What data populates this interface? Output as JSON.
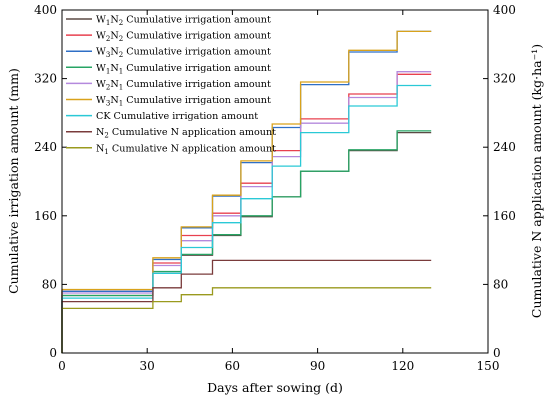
{
  "chart_data": {
    "type": "line",
    "step": true,
    "xlabel": "Days after sowing (d)",
    "ylabel": "Cumulative irrigation amount (mm)",
    "y2label": "Cumulative N application amount (kg·ha⁻¹)",
    "xlim": [
      0,
      150
    ],
    "ylim": [
      0,
      400
    ],
    "y2lim": [
      0,
      400
    ],
    "xticks": [
      0,
      30,
      60,
      90,
      120,
      150
    ],
    "yticks": [
      0,
      80,
      160,
      240,
      320,
      400
    ],
    "y2ticks": [
      0,
      80,
      160,
      240,
      320,
      400
    ],
    "grid": false,
    "legend_position": "top-left",
    "series": [
      {
        "name": "W1N2 Cumulative irrigation amount",
        "legend": {
          "pre": "W",
          "s1": "1",
          "mid": "N",
          "s2": "2",
          "post": " Cumulative irrigation amount"
        },
        "color": "#5b4a45",
        "axis": "left",
        "x": [
          0,
          32,
          42,
          53,
          63,
          74,
          84,
          101,
          118,
          130
        ],
        "y": [
          67,
          93,
          114,
          137,
          159,
          182,
          212,
          236,
          257,
          257
        ]
      },
      {
        "name": "W2N2 Cumulative irrigation amount",
        "legend": {
          "pre": "W",
          "s1": "2",
          "mid": "N",
          "s2": "2",
          "post": " Cumulative irrigation amount"
        },
        "color": "#e8404f",
        "axis": "left",
        "x": [
          0,
          32,
          42,
          53,
          63,
          74,
          84,
          101,
          118,
          130
        ],
        "y": [
          72,
          105,
          137,
          163,
          198,
          236,
          273,
          302,
          325,
          325
        ]
      },
      {
        "name": "W3N2 Cumulative irrigation amount",
        "legend": {
          "pre": "W",
          "s1": "3",
          "mid": "N",
          "s2": "2",
          "post": " Cumulative irrigation amount"
        },
        "color": "#2f6fc6",
        "axis": "left",
        "x": [
          0,
          32,
          42,
          53,
          63,
          74,
          84,
          101,
          118,
          130
        ],
        "y": [
          72,
          109,
          146,
          183,
          222,
          263,
          313,
          351,
          375,
          375
        ]
      },
      {
        "name": "W1N1 Cumulative irrigation amount",
        "legend": {
          "pre": "W",
          "s1": "1",
          "mid": "N",
          "s2": "1",
          "post": " Cumulative irrigation amount"
        },
        "color": "#27a464",
        "axis": "left",
        "x": [
          0,
          32,
          42,
          53,
          63,
          74,
          84,
          101,
          118,
          130
        ],
        "y": [
          67,
          95,
          115,
          138,
          160,
          182,
          212,
          237,
          259,
          259
        ]
      },
      {
        "name": "W2N1 Cumulative irrigation amount",
        "legend": {
          "pre": "W",
          "s1": "2",
          "mid": "N",
          "s2": "1",
          "post": " Cumulative irrigation amount"
        },
        "color": "#b489dd",
        "axis": "left",
        "x": [
          0,
          32,
          42,
          53,
          63,
          74,
          84,
          101,
          118,
          130
        ],
        "y": [
          70,
          102,
          131,
          160,
          194,
          229,
          268,
          298,
          328,
          328
        ]
      },
      {
        "name": "W3N1 Cumulative irrigation amount",
        "legend": {
          "pre": "W",
          "s1": "3",
          "mid": "N",
          "s2": "1",
          "post": " Cumulative irrigation amount"
        },
        "color": "#d9a21b",
        "axis": "left",
        "x": [
          0,
          32,
          42,
          53,
          63,
          74,
          84,
          101,
          118,
          130
        ],
        "y": [
          74,
          111,
          147,
          184,
          224,
          267,
          316,
          353,
          375,
          375
        ]
      },
      {
        "name": "CK Cumulative irrigation amount",
        "legend": {
          "pre": "CK Cumulative irrigation amount"
        },
        "color": "#2ac9d6",
        "axis": "left",
        "x": [
          0,
          32,
          42,
          53,
          63,
          74,
          84,
          101,
          118,
          130
        ],
        "y": [
          64,
          93,
          123,
          152,
          180,
          218,
          257,
          288,
          312,
          312
        ]
      },
      {
        "name": "N2 Cumulative N application amount",
        "legend": {
          "pre": "N",
          "s1": "2",
          "post": " Cumulative N application amount"
        },
        "color": "#7a3b3b",
        "axis": "right",
        "x": [
          0,
          32,
          42,
          53,
          130
        ],
        "y": [
          60,
          76,
          92,
          108,
          108
        ]
      },
      {
        "name": "N1 Cumulative N application amount",
        "legend": {
          "pre": "N",
          "s1": "1",
          "post": " Cumulative N application amount"
        },
        "color": "#9a9a1e",
        "axis": "right",
        "x": [
          0,
          32,
          42,
          53,
          130
        ],
        "y": [
          52,
          60,
          68,
          76,
          76
        ]
      }
    ]
  }
}
